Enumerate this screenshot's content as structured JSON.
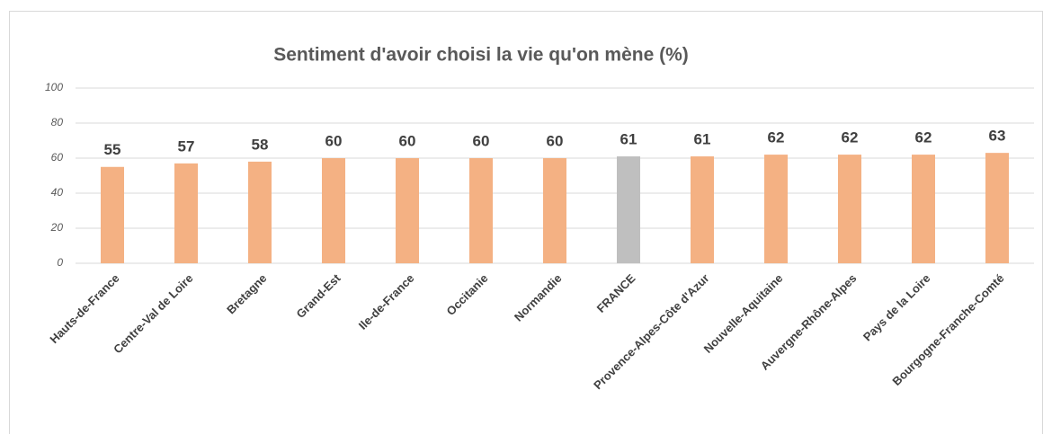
{
  "chart_data": {
    "type": "bar",
    "title": "Sentiment d'avoir choisi la vie qu'on mène (%)",
    "categories": [
      "Hauts-de-France",
      "Centre-Val de Loire",
      "Bretagne",
      "Grand-Est",
      "Ile-de-France",
      "Occitanie",
      "Normandie",
      "FRANCE",
      "Provence-Alpes-Côte d'Azur",
      "Nouvelle-Aquitaine",
      "Auvergne-Rhône-Alpes",
      "Pays de la Loire",
      "Bourgogne-Franche-Comté"
    ],
    "values": [
      55,
      57,
      58,
      60,
      60,
      60,
      60,
      61,
      61,
      62,
      62,
      62,
      63
    ],
    "colors": [
      "#F4B183",
      "#F4B183",
      "#F4B183",
      "#F4B183",
      "#F4B183",
      "#F4B183",
      "#F4B183",
      "#BFBFBF",
      "#F4B183",
      "#F4B183",
      "#F4B183",
      "#F4B183",
      "#F4B183"
    ],
    "ylim": [
      0,
      100
    ],
    "yticks": [
      0,
      20,
      40,
      60,
      80,
      100
    ],
    "grid": true
  }
}
